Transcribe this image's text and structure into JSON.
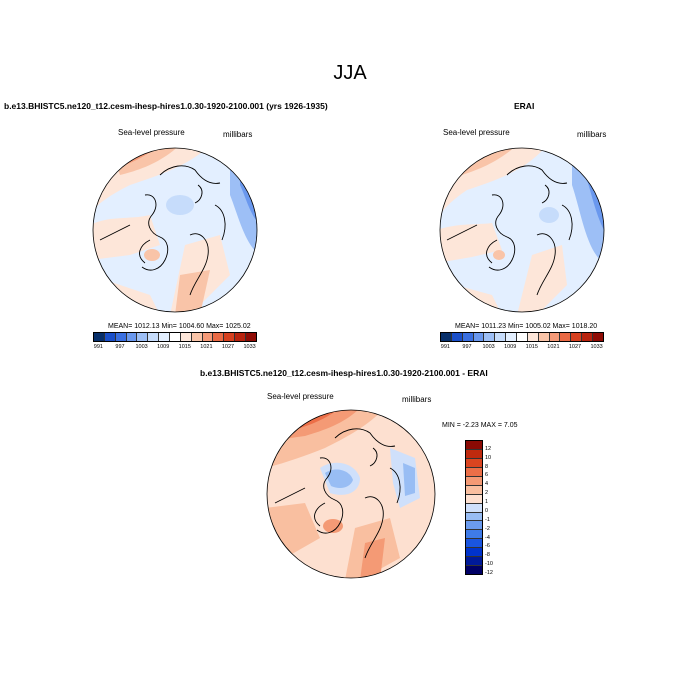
{
  "title": "JJA",
  "panels": {
    "left": {
      "title": "b.e13.BHISTC5.ne120_t12.cesm-ihesp-hires1.0.30-1920-2100.001 (yrs 1926-1935)",
      "variable": "Sea-level pressure",
      "units": "millibars",
      "stats": "MEAN= 1012.13  Min= 1004.60  Max= 1025.02"
    },
    "right": {
      "title": "ERAI",
      "variable": "Sea-level pressure",
      "units": "millibars",
      "stats": "MEAN= 1011.23  Min= 1005.02  Max= 1018.20"
    },
    "diff": {
      "title": "b.e13.BHISTC5.ne120_t12.cesm-ihesp-hires1.0.30-1920-2100.001 - ERAI",
      "variable": "Sea-level pressure",
      "units": "millibars",
      "stats": "MIN =  -2.23 MAX =   7.05"
    }
  },
  "colorbars": {
    "abs_colors": [
      "#08306b",
      "#1a4fc9",
      "#3a6fe0",
      "#6a98ee",
      "#9dbff6",
      "#c6dcfb",
      "#e3efff",
      "#ffffff",
      "#fde6d9",
      "#f9c4a8",
      "#f59a78",
      "#ea6a45",
      "#d6401f",
      "#b8230e",
      "#8f0c05"
    ],
    "abs_ticks": [
      "991",
      "997",
      "1003",
      "1009",
      "1015",
      "1021",
      "1027",
      "1033"
    ],
    "diff_colors": [
      "#000066",
      "#001a99",
      "#0033cc",
      "#1a55e0",
      "#3f7be8",
      "#6b9bee",
      "#98bdf4",
      "#cfe0fb",
      "#fde0d0",
      "#f9bfa0",
      "#f49a75",
      "#ec6f48",
      "#db4520",
      "#bf2a0e",
      "#8a0a04"
    ],
    "diff_ticks": [
      "12",
      "10",
      "8",
      "6",
      "4",
      "2",
      "1",
      "0",
      "-1",
      "-2",
      "-4",
      "-6",
      "-8",
      "-10",
      "-12"
    ]
  }
}
